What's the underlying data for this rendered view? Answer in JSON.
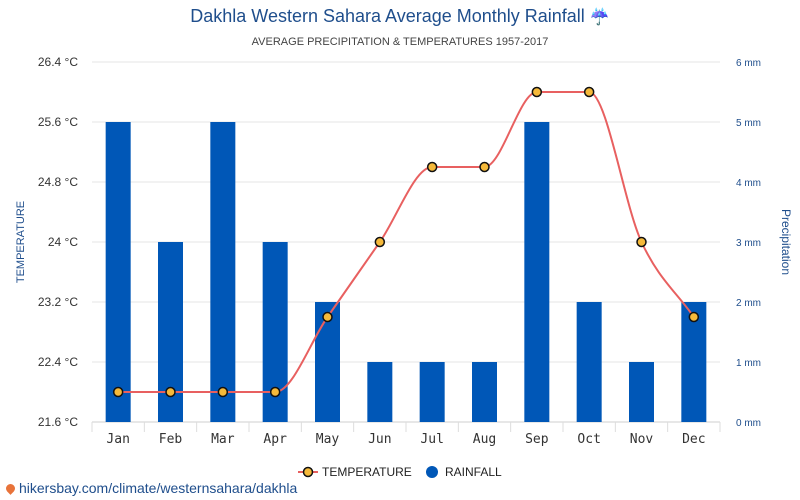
{
  "title": "Dakhla Western Sahara Average Monthly Rainfall",
  "title_icon": "umbrella-rain-icon",
  "subtitle": "AVERAGE PRECIPITATION & TEMPERATURES 1957-2017",
  "source": "hikersbay.com/climate/westernsahara/dakhla",
  "source_icon": "map-pin-icon",
  "colors": {
    "rainfall": "#0057b7",
    "temperature": "#e86060",
    "marker_fill": "#f5b93a",
    "title": "#1f4e8c"
  },
  "chart_data": {
    "type": "bar",
    "categories": [
      "Jan",
      "Feb",
      "Mar",
      "Apr",
      "May",
      "Jun",
      "Jul",
      "Aug",
      "Sep",
      "Oct",
      "Nov",
      "Dec"
    ],
    "ylabel_left": "TEMPERATURE",
    "ylabel_right": "Precipitation",
    "y_left": {
      "min": 21.6,
      "max": 26.4,
      "ticks": [
        "21.6 °C",
        "22.4 °C",
        "23.2 °C",
        "24 °C",
        "24.8 °C",
        "25.6 °C",
        "26.4 °C"
      ]
    },
    "y_right": {
      "min": 0,
      "max": 6,
      "ticks": [
        "0 mm",
        "1 mm",
        "2 mm",
        "3 mm",
        "4 mm",
        "5 mm",
        "6 mm"
      ]
    },
    "series": [
      {
        "name": "RAINFALL",
        "type": "bar",
        "axis": "right",
        "values": [
          5,
          3,
          5,
          3,
          2,
          1,
          1,
          1,
          5,
          2,
          1,
          2
        ]
      },
      {
        "name": "TEMPERATURE",
        "type": "line",
        "axis": "left",
        "values": [
          22,
          22,
          22,
          22,
          23,
          24,
          25,
          25,
          26,
          26,
          24,
          23
        ]
      }
    ],
    "grid": true,
    "legend": "bottom-center"
  }
}
